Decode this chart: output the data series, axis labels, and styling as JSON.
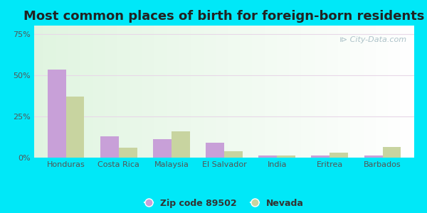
{
  "title": "Most common places of birth for foreign-born residents",
  "categories": [
    "Honduras",
    "Costa Rica",
    "Malaysia",
    "El Salvador",
    "India",
    "Eritrea",
    "Barbados"
  ],
  "zip_values": [
    53.5,
    13.0,
    11.0,
    9.0,
    1.5,
    1.5,
    1.5
  ],
  "nevada_values": [
    37.0,
    6.0,
    16.0,
    4.0,
    1.5,
    3.0,
    6.5
  ],
  "zip_color": "#c8a0d8",
  "nevada_color": "#c8d4a0",
  "background_outer": "#00e8f8",
  "yticks": [
    0,
    25,
    50,
    75
  ],
  "ylim": [
    0,
    80
  ],
  "bar_width": 0.35,
  "legend_zip_label": "Zip code 89502",
  "legend_nevada_label": "Nevada",
  "title_fontsize": 13,
  "tick_fontsize": 8,
  "legend_fontsize": 9,
  "grid_color": "#e0ebe0",
  "tick_color": "#555555"
}
